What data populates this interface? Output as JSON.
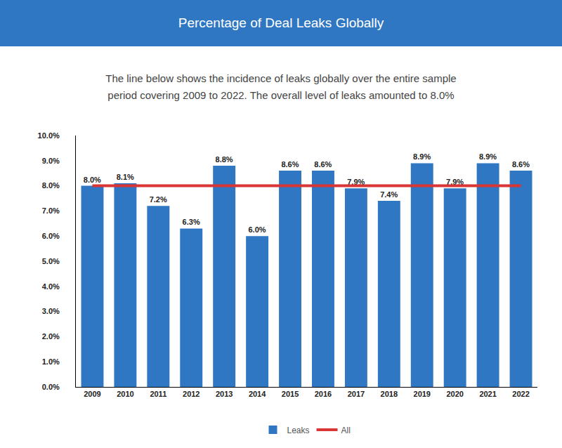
{
  "chart_data": {
    "type": "bar",
    "title": "Percentage of Deal Leaks Globally",
    "subtitle": "The line below shows the incidence of leaks globally over the entire sample period covering 2009 to 2022. The overall level of leaks amounted to 8.0%",
    "categories": [
      "2009",
      "2010",
      "2011",
      "2012",
      "2013",
      "2014",
      "2015",
      "2016",
      "2017",
      "2018",
      "2019",
      "2020",
      "2021",
      "2022"
    ],
    "series": [
      {
        "name": "Leaks",
        "type": "bar",
        "color": "#2f77c3",
        "values": [
          8.0,
          8.1,
          7.2,
          6.3,
          8.8,
          6.0,
          8.6,
          8.6,
          7.9,
          7.4,
          8.9,
          7.9,
          8.9,
          8.6
        ],
        "value_labels": [
          "8.0%",
          "8.1%",
          "7.2%",
          "6.3%",
          "8.8%",
          "6.0%",
          "8.6%",
          "8.6%",
          "7.9%",
          "7.4%",
          "8.9%",
          "7.9%",
          "8.9%",
          "8.6%"
        ]
      },
      {
        "name": "All",
        "type": "line",
        "color": "#d93535",
        "values": [
          8.0,
          8.0,
          8.0,
          8.0,
          8.0,
          8.0,
          8.0,
          8.0,
          8.0,
          8.0,
          8.0,
          8.0,
          8.0,
          8.0
        ]
      }
    ],
    "ylim": [
      0,
      10
    ],
    "yticks": [
      {
        "value": 0,
        "label": "0.0%"
      },
      {
        "value": 1,
        "label": "1.0%"
      },
      {
        "value": 2,
        "label": "2.0%"
      },
      {
        "value": 3,
        "label": "3.0%"
      },
      {
        "value": 4,
        "label": "4.0%"
      },
      {
        "value": 5,
        "label": "5.0%"
      },
      {
        "value": 6,
        "label": "6.0%"
      },
      {
        "value": 7,
        "label": "7.0%"
      },
      {
        "value": 8,
        "label": "8.0%"
      },
      {
        "value": 9,
        "label": "9.0%"
      },
      {
        "value": 10,
        "label": "10.0%"
      }
    ],
    "grid": false,
    "data_labels": true,
    "legend": "bottom"
  }
}
